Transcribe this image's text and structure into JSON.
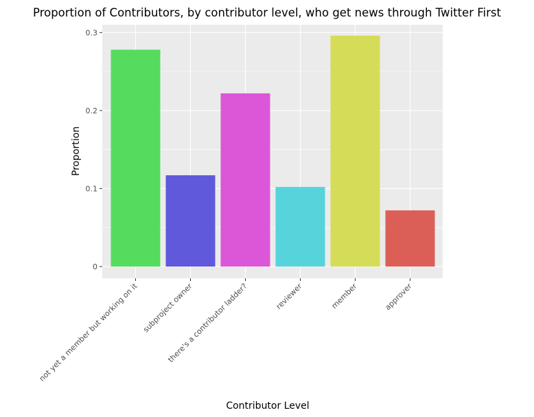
{
  "chart_data": {
    "type": "bar",
    "title": "Proportion of Contributors, by contributor level, who get news through Twitter First",
    "xlabel": "Contributor Level",
    "ylabel": "Proportion",
    "categories": [
      "not yet a member but working on it",
      "subproject owner",
      "there's a contributor ladder?",
      "reviewer",
      "member",
      "approver"
    ],
    "values": [
      0.278,
      0.117,
      0.222,
      0.102,
      0.296,
      0.072
    ],
    "colors": [
      "#55dc5f",
      "#6059dc",
      "#db57d7",
      "#57d3dc",
      "#d5dc57",
      "#dc5f57"
    ],
    "ylim": [
      -0.015,
      0.31
    ],
    "yticks": [
      0,
      0.1,
      0.2,
      0.3
    ],
    "ytick_labels": [
      "0",
      "0.1",
      "0.2",
      "0.3"
    ],
    "grid": true,
    "panel_background": "#ebebeb",
    "grid_color": "#ffffff"
  }
}
